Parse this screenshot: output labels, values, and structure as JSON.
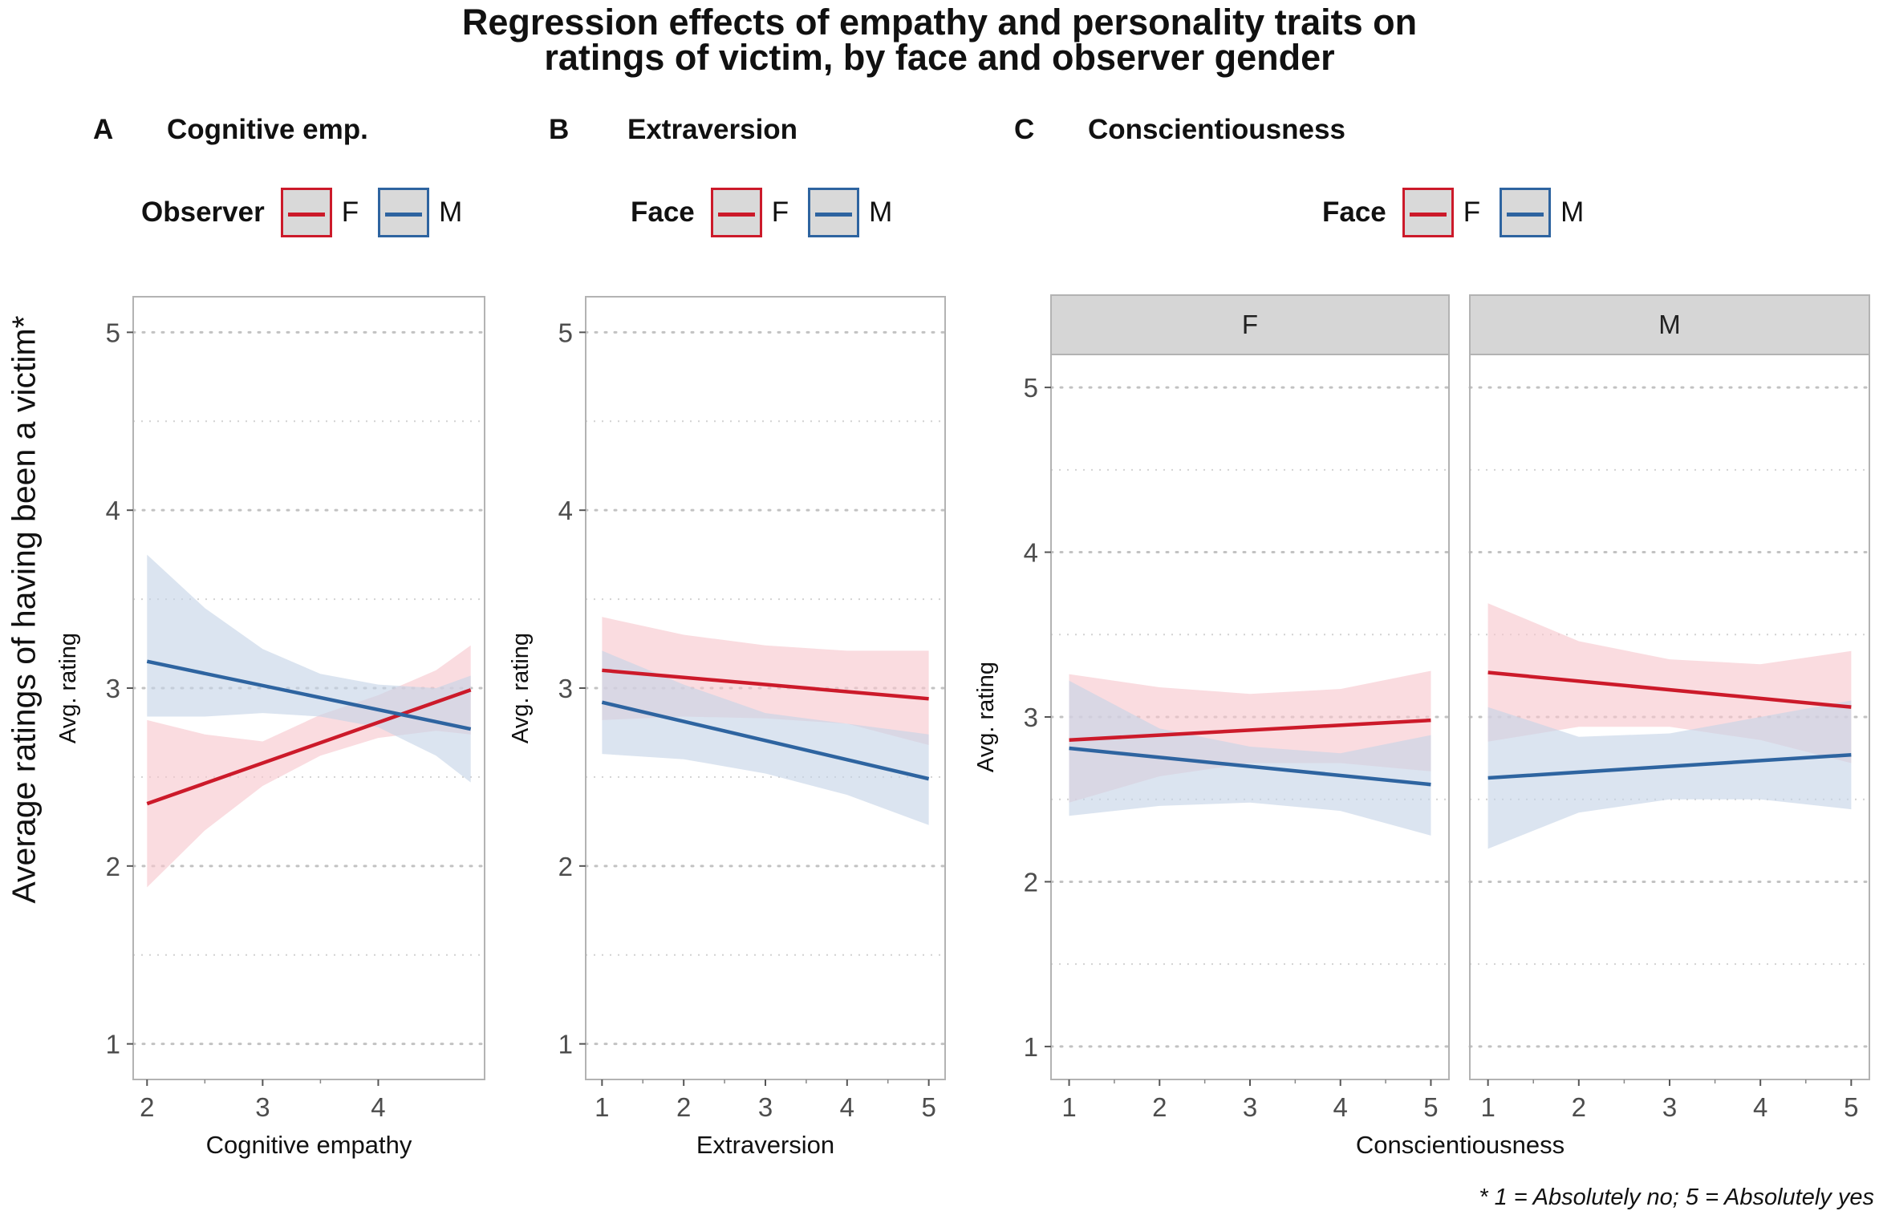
{
  "title_line1": "Regression effects of empathy and personality traits on",
  "title_line2": "ratings of victim, by face and observer gender",
  "y_axis_overall": "Average ratings of having been a victim*",
  "footnote": "* 1 = Absolutely no; 5 = Absolutely yes",
  "colors": {
    "F": "#cc1a2a",
    "M": "#2e64a0",
    "F_band": "#f7c6cd",
    "M_band": "#c5d3e6"
  },
  "chart_data": [
    {
      "panel": "A",
      "type": "line",
      "title": "Cognitive emp.",
      "legend_title": "Observer",
      "legend_items": [
        "F",
        "M"
      ],
      "xlabel": "Cognitive empathy",
      "ylabel": "Avg. rating",
      "xlim": [
        1.88,
        4.92
      ],
      "ylim": [
        0.8,
        5.2
      ],
      "xticks": [
        2,
        3,
        4
      ],
      "yticks": [
        1,
        2,
        3,
        4,
        5
      ],
      "series": [
        {
          "name": "F",
          "x": [
            2.0,
            4.8
          ],
          "y": [
            2.35,
            2.99
          ],
          "band": {
            "x": [
              2.0,
              2.5,
              3.0,
              3.5,
              4.0,
              4.5,
              4.8
            ],
            "lower": [
              1.88,
              2.2,
              2.45,
              2.62,
              2.72,
              2.76,
              2.74
            ],
            "upper": [
              2.82,
              2.74,
              2.7,
              2.85,
              2.96,
              3.1,
              3.24
            ]
          }
        },
        {
          "name": "M",
          "x": [
            2.0,
            4.8
          ],
          "y": [
            3.15,
            2.77
          ],
          "band": {
            "x": [
              2.0,
              2.5,
              3.0,
              3.5,
              4.0,
              4.5,
              4.8
            ],
            "lower": [
              2.84,
              2.84,
              2.86,
              2.84,
              2.78,
              2.62,
              2.47
            ],
            "upper": [
              3.75,
              3.45,
              3.22,
              3.08,
              3.02,
              3.0,
              3.07
            ]
          }
        }
      ]
    },
    {
      "panel": "B",
      "type": "line",
      "title": "Extraversion",
      "legend_title": "Face",
      "legend_items": [
        "F",
        "M"
      ],
      "xlabel": "Extraversion",
      "ylabel": "Avg. rating",
      "xlim": [
        0.8,
        5.2
      ],
      "ylim": [
        0.8,
        5.2
      ],
      "xticks": [
        1,
        2,
        3,
        4,
        5
      ],
      "yticks": [
        1,
        2,
        3,
        4,
        5
      ],
      "series": [
        {
          "name": "F",
          "x": [
            1,
            5
          ],
          "y": [
            3.1,
            2.94
          ],
          "band": {
            "x": [
              1,
              2,
              3,
              4,
              5
            ],
            "lower": [
              2.82,
              2.84,
              2.83,
              2.8,
              2.68
            ],
            "upper": [
              3.4,
              3.3,
              3.24,
              3.21,
              3.21
            ]
          }
        },
        {
          "name": "M",
          "x": [
            1,
            5
          ],
          "y": [
            2.92,
            2.49
          ],
          "band": {
            "x": [
              1,
              2,
              3,
              4,
              5
            ],
            "lower": [
              2.63,
              2.6,
              2.52,
              2.4,
              2.23
            ],
            "upper": [
              3.21,
              3.02,
              2.86,
              2.8,
              2.74
            ]
          }
        }
      ]
    },
    {
      "panel": "C",
      "type": "line",
      "title": "Conscientiousness",
      "legend_title": "Face",
      "legend_items": [
        "F",
        "M"
      ],
      "xlabel": "Conscientiousness",
      "ylabel": "Avg. rating",
      "xlim": [
        0.8,
        5.2
      ],
      "ylim": [
        0.8,
        5.2
      ],
      "xticks": [
        1,
        2,
        3,
        4,
        5
      ],
      "yticks": [
        1,
        2,
        3,
        4,
        5
      ],
      "facets": [
        {
          "strip": "F",
          "series": [
            {
              "name": "F",
              "x": [
                1,
                5
              ],
              "y": [
                2.86,
                2.98
              ],
              "band": {
                "x": [
                  1,
                  2,
                  3,
                  4,
                  5
                ],
                "lower": [
                  2.48,
                  2.64,
                  2.72,
                  2.72,
                  2.67
                ],
                "upper": [
                  3.26,
                  3.18,
                  3.14,
                  3.17,
                  3.28
                ]
              }
            },
            {
              "name": "M",
              "x": [
                1,
                5
              ],
              "y": [
                2.81,
                2.59
              ],
              "band": {
                "x": [
                  1,
                  2,
                  3,
                  4,
                  5
                ],
                "lower": [
                  2.4,
                  2.46,
                  2.48,
                  2.43,
                  2.28
                ],
                "upper": [
                  3.22,
                  2.93,
                  2.82,
                  2.78,
                  2.89
                ]
              }
            }
          ]
        },
        {
          "strip": "M",
          "series": [
            {
              "name": "F",
              "x": [
                1,
                5
              ],
              "y": [
                3.27,
                3.06
              ],
              "band": {
                "x": [
                  1,
                  2,
                  3,
                  4,
                  5
                ],
                "lower": [
                  2.85,
                  2.94,
                  2.94,
                  2.86,
                  2.72
                ],
                "upper": [
                  3.69,
                  3.46,
                  3.35,
                  3.32,
                  3.4
                ]
              }
            },
            {
              "name": "M",
              "x": [
                1,
                5
              ],
              "y": [
                2.63,
                2.77
              ],
              "band": {
                "x": [
                  1,
                  2,
                  3,
                  4,
                  5
                ],
                "lower": [
                  2.2,
                  2.42,
                  2.5,
                  2.5,
                  2.44
                ],
                "upper": [
                  3.06,
                  2.88,
                  2.9,
                  3.0,
                  3.1
                ]
              }
            }
          ]
        }
      ]
    }
  ]
}
